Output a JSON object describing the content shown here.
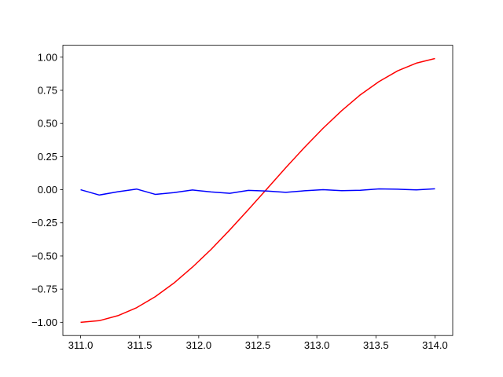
{
  "chart_data": {
    "type": "line",
    "x": [
      311.0,
      311.158,
      311.316,
      311.474,
      311.632,
      311.789,
      311.947,
      312.105,
      312.263,
      312.421,
      312.579,
      312.737,
      312.895,
      313.053,
      313.211,
      313.368,
      313.526,
      313.684,
      313.842,
      314.0
    ],
    "series": [
      {
        "color": "#ff0000",
        "values": [
          -1.0,
          -0.988,
          -0.95,
          -0.89,
          -0.807,
          -0.705,
          -0.584,
          -0.45,
          -0.303,
          -0.149,
          0.008,
          0.166,
          0.319,
          0.464,
          0.597,
          0.716,
          0.816,
          0.897,
          0.955,
          0.99
        ]
      },
      {
        "color": "#0000ff",
        "values": [
          0.0,
          -0.04,
          -0.015,
          0.005,
          -0.035,
          -0.022,
          -0.002,
          -0.017,
          -0.027,
          -0.005,
          -0.01,
          -0.02,
          -0.008,
          0.0,
          -0.007,
          -0.004,
          0.006,
          0.004,
          -0.001,
          0.007
        ]
      }
    ],
    "xlim": [
      310.85,
      314.15
    ],
    "xticks": [
      {
        "value": 311,
        "label": "311.0"
      },
      {
        "value": 311.5,
        "label": "311.5"
      },
      {
        "value": 312,
        "label": "312.0"
      },
      {
        "value": 312.5,
        "label": "312.5"
      },
      {
        "value": 313,
        "label": "313.0"
      },
      {
        "value": 313.5,
        "label": "313.5"
      },
      {
        "value": 314,
        "label": "314.0"
      }
    ],
    "ylim": [
      -1.1,
      1.09
    ],
    "yticks": [
      {
        "value": -1,
        "label": "−1.00"
      },
      {
        "value": -0.75,
        "label": "−0.75"
      },
      {
        "value": -0.5,
        "label": "−0.50"
      },
      {
        "value": -0.25,
        "label": "−0.25"
      },
      {
        "value": 0,
        "label": "0.00"
      },
      {
        "value": 0.25,
        "label": "0.25"
      },
      {
        "value": 0.5,
        "label": "0.50"
      },
      {
        "value": 0.75,
        "label": "0.75"
      },
      {
        "value": 1,
        "label": "1.00"
      }
    ],
    "grid": false
  }
}
